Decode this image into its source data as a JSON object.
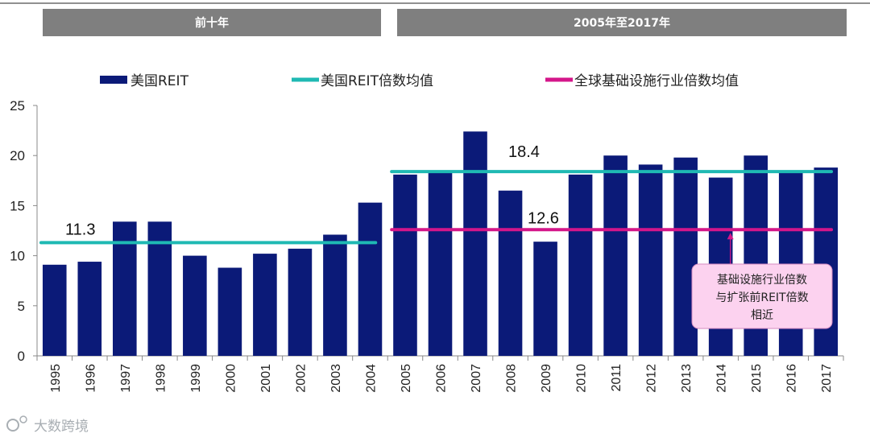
{
  "chart_data": {
    "type": "bar",
    "categories": [
      "1995",
      "1996",
      "1997",
      "1998",
      "1999",
      "2000",
      "2001",
      "2002",
      "2003",
      "2004",
      "2005",
      "2006",
      "2007",
      "2008",
      "2009",
      "2010",
      "2011",
      "2012",
      "2013",
      "2014",
      "2015",
      "2016",
      "2017"
    ],
    "series": [
      {
        "name": "美国REIT",
        "color": "#0b1a78",
        "values": [
          9.1,
          9.4,
          13.4,
          13.4,
          10.0,
          8.8,
          10.2,
          10.7,
          12.1,
          15.3,
          18.1,
          18.4,
          22.4,
          16.5,
          11.4,
          18.1,
          20.0,
          19.1,
          19.8,
          17.8,
          20.0,
          18.4,
          18.8
        ]
      }
    ],
    "lines": [
      {
        "name": "美国REIT倍数均值",
        "color": "#1fb9b3",
        "segments": [
          {
            "from": "1995",
            "to": "2004",
            "value": 11.3,
            "label": "11.3"
          },
          {
            "from": "2005",
            "to": "2017",
            "value": 18.4,
            "label": "18.4"
          }
        ]
      },
      {
        "name": "全球基础设施行业倍数均值",
        "color": "#d4168a",
        "segments": [
          {
            "from": "2005",
            "to": "2017",
            "value": 12.6,
            "label": "12.6"
          }
        ]
      }
    ],
    "periods": [
      {
        "label": "前十年",
        "from": "1995",
        "to": "2004"
      },
      {
        "label": "2005年至2017年",
        "from": "2005",
        "to": "2017"
      }
    ],
    "ylim": [
      0,
      25
    ],
    "yticks": [
      "0",
      "5",
      "10",
      "15",
      "20",
      "25"
    ],
    "xlabel": "",
    "ylabel": "",
    "annotation": {
      "lines": [
        "基础设施行业倍数",
        "与扩张前REIT倍数",
        "相近"
      ],
      "points_to": {
        "x": "2014",
        "value": 12.6
      },
      "fill": "#fcd2ef",
      "border": "#d48ac0"
    },
    "legend_position": "top"
  },
  "watermark": "大数跨境",
  "colors": {
    "period_bar": "#7f7f7f",
    "axis": "#888888"
  }
}
